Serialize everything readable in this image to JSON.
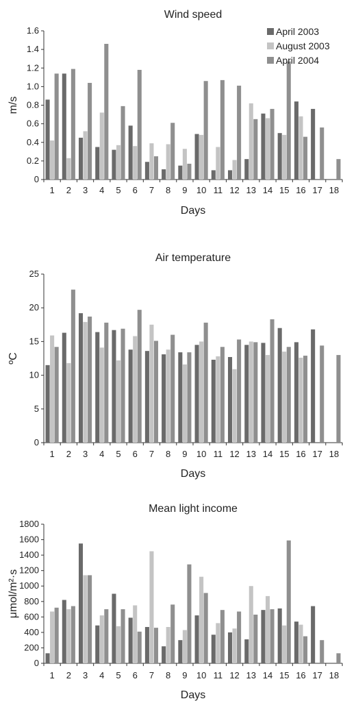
{
  "chart_data": [
    {
      "type": "bar",
      "title": "Wind speed",
      "xlabel": "Days",
      "ylabel": "m/s",
      "ylim": [
        0,
        1.6
      ],
      "yticks": [
        "0",
        "0.2",
        "0.4",
        "0.6",
        "0.8",
        "1.0",
        "1.2",
        "1.4",
        "1.6"
      ],
      "categories": [
        "1",
        "2",
        "3",
        "4",
        "5",
        "6",
        "7",
        "8",
        "9",
        "10",
        "11",
        "12",
        "13",
        "14",
        "15",
        "16",
        "17",
        "18"
      ],
      "legend_position": "top-right",
      "series": [
        {
          "name": "April 2003",
          "color": "#6a6a6a",
          "values": [
            0.86,
            1.14,
            0.45,
            0.35,
            0.32,
            0.58,
            0.19,
            0.11,
            0.15,
            0.49,
            0.1,
            0.1,
            0.22,
            0.71,
            0.5,
            0.84,
            0.76,
            null
          ]
        },
        {
          "name": "August 2003",
          "color": "#c4c4c4",
          "values": [
            0.42,
            0.23,
            0.52,
            0.72,
            0.37,
            0.36,
            0.39,
            0.38,
            0.33,
            0.48,
            0.35,
            0.21,
            0.82,
            0.66,
            0.48,
            0.68,
            null,
            null
          ]
        },
        {
          "name": "April 2004",
          "color": "#8f8f8f",
          "values": [
            1.14,
            1.19,
            1.04,
            1.46,
            0.79,
            1.18,
            0.25,
            0.61,
            0.17,
            1.06,
            1.07,
            1.01,
            0.65,
            0.76,
            1.27,
            0.46,
            0.56,
            0.22
          ]
        }
      ]
    },
    {
      "type": "bar",
      "title": "Air temperature",
      "xlabel": "Days",
      "ylabel": "ºC",
      "ylim": [
        0,
        25
      ],
      "yticks": [
        "0",
        "5",
        "10",
        "15",
        "20",
        "25"
      ],
      "categories": [
        "1",
        "2",
        "3",
        "4",
        "5",
        "6",
        "7",
        "8",
        "9",
        "10",
        "11",
        "12",
        "13",
        "14",
        "15",
        "16",
        "17",
        "18"
      ],
      "series": [
        {
          "name": "April 2003",
          "color": "#6a6a6a",
          "values": [
            11.5,
            16.3,
            19.2,
            16.4,
            16.7,
            13.8,
            13.6,
            13.1,
            13.4,
            14.5,
            12.3,
            12.7,
            14.5,
            14.8,
            17.0,
            14.9,
            16.8,
            null
          ]
        },
        {
          "name": "August 2003",
          "color": "#c4c4c4",
          "values": [
            15.9,
            11.8,
            17.9,
            14.1,
            12.2,
            15.8,
            17.5,
            13.8,
            11.6,
            15.0,
            12.8,
            10.9,
            15.0,
            13.0,
            13.5,
            12.6,
            null,
            null
          ]
        },
        {
          "name": "April 2004",
          "color": "#8f8f8f",
          "values": [
            14.2,
            22.7,
            18.7,
            17.8,
            16.9,
            19.7,
            15.1,
            16.0,
            13.4,
            17.8,
            14.2,
            15.3,
            14.9,
            18.3,
            14.2,
            12.9,
            14.4,
            13.0
          ]
        }
      ]
    },
    {
      "type": "bar",
      "title": "Mean light income",
      "xlabel": "Days",
      "ylabel": "μmol/m²·s",
      "ylim": [
        0,
        1800
      ],
      "yticks": [
        "0",
        "200",
        "400",
        "600",
        "800",
        "1000",
        "1200",
        "1400",
        "1600",
        "1800"
      ],
      "categories": [
        "1",
        "2",
        "3",
        "4",
        "5",
        "6",
        "7",
        "8",
        "9",
        "10",
        "11",
        "12",
        "13",
        "14",
        "15",
        "16",
        "17",
        "18"
      ],
      "series": [
        {
          "name": "April 2003",
          "color": "#6a6a6a",
          "values": [
            130,
            820,
            1550,
            490,
            900,
            590,
            470,
            220,
            300,
            620,
            370,
            400,
            310,
            690,
            710,
            540,
            740,
            null
          ]
        },
        {
          "name": "August 2003",
          "color": "#c4c4c4",
          "values": [
            670,
            700,
            1140,
            620,
            480,
            750,
            1450,
            470,
            430,
            1120,
            520,
            450,
            1000,
            870,
            490,
            500,
            null,
            null
          ]
        },
        {
          "name": "April 2004",
          "color": "#8f8f8f",
          "values": [
            720,
            740,
            1140,
            700,
            700,
            410,
            460,
            760,
            1280,
            910,
            690,
            670,
            630,
            700,
            1590,
            350,
            300,
            130
          ]
        }
      ]
    }
  ]
}
